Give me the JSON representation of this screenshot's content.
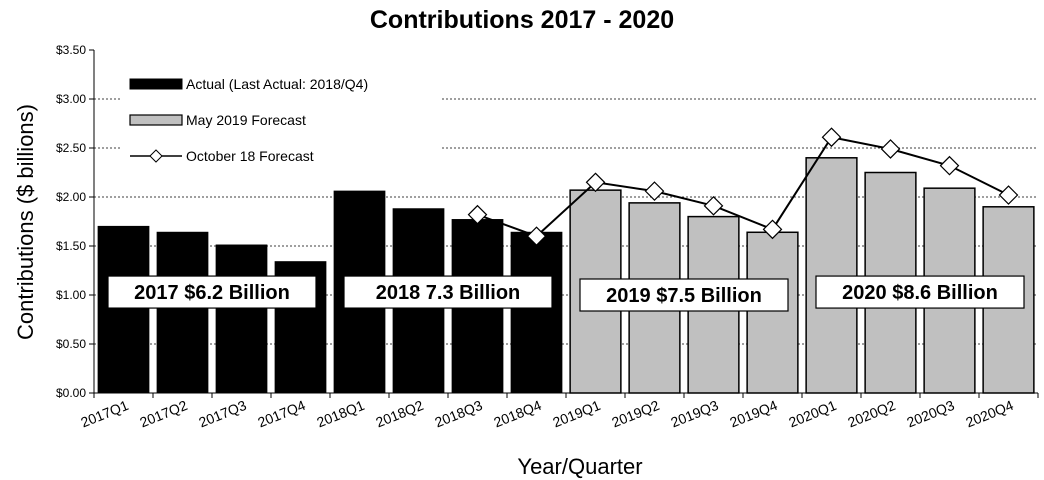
{
  "chart_data": {
    "type": "bar",
    "title": "Contributions  2017 - 2020",
    "xlabel": "Year/Quarter",
    "ylabel": "Contributions ($ billions)",
    "ylim": [
      0,
      3.5
    ],
    "y_ticks": [
      "$0.00",
      "$0.50",
      "$1.00",
      "$1.50",
      "$2.00",
      "$2.50",
      "$3.00",
      "$3.50"
    ],
    "categories": [
      "2017Q1",
      "2017Q2",
      "2017Q3",
      "2017Q4",
      "2018Q1",
      "2018Q2",
      "2018Q3",
      "2018Q4",
      "2019Q1",
      "2019Q2",
      "2019Q3",
      "2019Q4",
      "2020Q1",
      "2020Q2",
      "2020Q3",
      "2020Q4"
    ],
    "grid": "horizontal dashed, above $1.00",
    "legend_position": "top-left",
    "series": [
      {
        "name": "Actual (Last Actual: 2018/Q4)",
        "kind": "bar",
        "color": "#000000",
        "values": [
          1.7,
          1.64,
          1.51,
          1.34,
          2.06,
          1.88,
          1.77,
          1.64,
          null,
          null,
          null,
          null,
          null,
          null,
          null,
          null
        ]
      },
      {
        "name": "May 2019 Forecast",
        "kind": "bar",
        "color": "#c0c0c0",
        "values": [
          null,
          null,
          null,
          null,
          null,
          null,
          null,
          null,
          2.07,
          1.94,
          1.8,
          1.64,
          2.4,
          2.25,
          2.09,
          1.9
        ]
      },
      {
        "name": "October 18 Forecast",
        "kind": "line",
        "color": "#000000",
        "values": [
          null,
          null,
          null,
          null,
          null,
          null,
          1.82,
          1.6,
          2.15,
          2.06,
          1.91,
          1.67,
          2.61,
          2.49,
          2.32,
          2.02
        ]
      }
    ],
    "annotations": [
      {
        "text": "2017 $6.2 Billion",
        "start": 0,
        "end": 3,
        "level": 1.03
      },
      {
        "text": "2018 7.3 Billion",
        "start": 4,
        "end": 7,
        "level": 1.03
      },
      {
        "text": "2019 $7.5 Billion",
        "start": 8,
        "end": 11,
        "level": 1.0
      },
      {
        "text": "2020 $8.6 Billion",
        "start": 12,
        "end": 15,
        "level": 1.03
      }
    ]
  }
}
